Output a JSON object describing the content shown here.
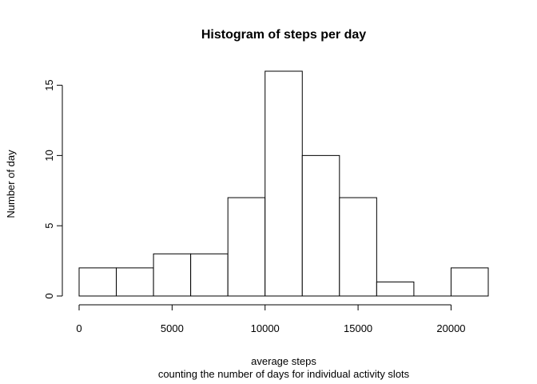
{
  "chart_data": {
    "type": "bar",
    "title": "Histogram of steps per day",
    "xlabel": "average steps",
    "subtitle": "counting the number of days for individual activity slots",
    "ylabel": "Number of day",
    "bins": [
      {
        "from": 0,
        "to": 2000,
        "count": 2
      },
      {
        "from": 2000,
        "to": 4000,
        "count": 2
      },
      {
        "from": 4000,
        "to": 6000,
        "count": 3
      },
      {
        "from": 6000,
        "to": 8000,
        "count": 3
      },
      {
        "from": 8000,
        "to": 10000,
        "count": 7
      },
      {
        "from": 10000,
        "to": 12000,
        "count": 16
      },
      {
        "from": 12000,
        "to": 14000,
        "count": 10
      },
      {
        "from": 14000,
        "to": 16000,
        "count": 7
      },
      {
        "from": 16000,
        "to": 18000,
        "count": 1
      },
      {
        "from": 18000,
        "to": 20000,
        "count": 0
      },
      {
        "from": 20000,
        "to": 22000,
        "count": 2
      }
    ],
    "xticks": [
      0,
      5000,
      10000,
      15000,
      20000
    ],
    "yticks": [
      0,
      5,
      10,
      15
    ],
    "xlim": [
      0,
      22000
    ],
    "ylim": [
      0,
      16
    ],
    "grid": false
  }
}
